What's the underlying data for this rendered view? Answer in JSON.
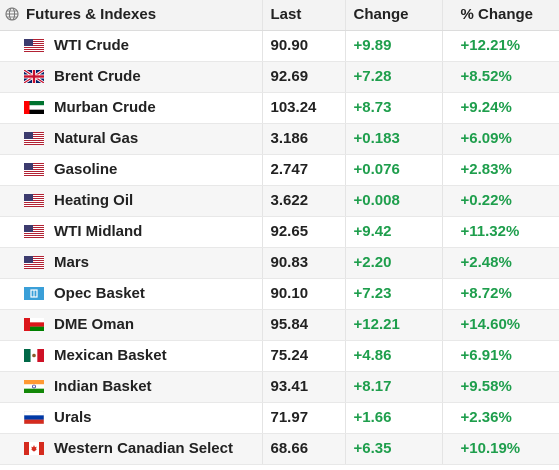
{
  "header": {
    "name": "Futures & Indexes",
    "last": "Last",
    "change": "Change",
    "pct": "% Change"
  },
  "rows": [
    {
      "flag": "us-flag-icon",
      "name": "WTI Crude",
      "last": "90.90",
      "change": "+9.89",
      "pct": "+12.21%"
    },
    {
      "flag": "uk-flag-icon",
      "name": "Brent Crude",
      "last": "92.69",
      "change": "+7.28",
      "pct": "+8.52%"
    },
    {
      "flag": "uae-flag-icon",
      "name": "Murban Crude",
      "last": "103.24",
      "change": "+8.73",
      "pct": "+9.24%"
    },
    {
      "flag": "us-flag-icon",
      "name": "Natural Gas",
      "last": "3.186",
      "change": "+0.183",
      "pct": "+6.09%"
    },
    {
      "flag": "us-flag-icon",
      "name": "Gasoline",
      "last": "2.747",
      "change": "+0.076",
      "pct": "+2.83%"
    },
    {
      "flag": "us-flag-icon",
      "name": "Heating Oil",
      "last": "3.622",
      "change": "+0.008",
      "pct": "+0.22%"
    },
    {
      "flag": "us-flag-icon",
      "name": "WTI Midland",
      "last": "92.65",
      "change": "+9.42",
      "pct": "+11.32%"
    },
    {
      "flag": "us-flag-icon",
      "name": "Mars",
      "last": "90.83",
      "change": "+2.20",
      "pct": "+2.48%"
    },
    {
      "flag": "opec-flag-icon",
      "name": "Opec Basket",
      "last": "90.10",
      "change": "+7.23",
      "pct": "+8.72%"
    },
    {
      "flag": "oman-flag-icon",
      "name": "DME Oman",
      "last": "95.84",
      "change": "+12.21",
      "pct": "+14.60%"
    },
    {
      "flag": "mexico-flag-icon",
      "name": "Mexican Basket",
      "last": "75.24",
      "change": "+4.86",
      "pct": "+6.91%"
    },
    {
      "flag": "india-flag-icon",
      "name": "Indian Basket",
      "last": "93.41",
      "change": "+8.17",
      "pct": "+9.58%"
    },
    {
      "flag": "russia-flag-icon",
      "name": "Urals",
      "last": "71.97",
      "change": "+1.66",
      "pct": "+2.36%"
    },
    {
      "flag": "canada-flag-icon",
      "name": "Western Canadian Select",
      "last": "68.66",
      "change": "+6.35",
      "pct": "+10.19%"
    }
  ],
  "colors": {
    "positive": "#1e9e4c",
    "header_bg": "#f3f3f3",
    "stripe_bg": "#f6f6f6"
  }
}
